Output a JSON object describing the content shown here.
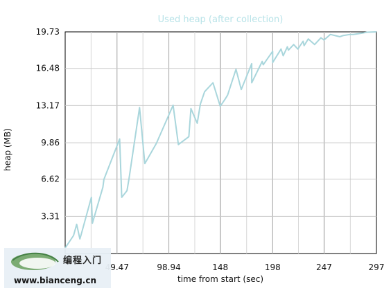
{
  "chart_data": {
    "type": "line",
    "title": "Used heap (after collection)",
    "xlabel": "time from start (sec)",
    "ylabel": "heap (MB)",
    "x_ticks": [
      "49.47",
      "98.94",
      "148",
      "198",
      "247",
      "297"
    ],
    "y_ticks": [
      "3.31",
      "6.62",
      "9.86",
      "13.17",
      "16.48",
      "19.73"
    ],
    "xlim": [
      0,
      297
    ],
    "ylim": [
      0,
      19.73
    ],
    "grid": true,
    "series": [
      {
        "color": "#a9d6dc",
        "x": [
          0,
          8,
          11,
          14,
          15,
          25,
          26,
          36,
          37,
          52,
          54,
          59,
          61,
          71,
          76,
          87,
          103,
          108,
          118,
          120,
          126,
          129,
          133,
          141,
          148,
          153,
          155,
          163,
          168,
          178,
          178,
          188,
          189,
          198,
          198,
          206,
          208,
          212,
          213,
          218,
          222,
          227,
          228,
          232,
          238,
          244,
          247,
          253,
          262,
          265,
          272,
          275,
          282,
          288,
          297
        ],
        "values": [
          0.5,
          1.6,
          2.6,
          1.3,
          1.6,
          5.0,
          2.7,
          5.9,
          6.6,
          10.2,
          5.0,
          5.6,
          6.7,
          13.0,
          8.0,
          9.8,
          13.2,
          9.7,
          10.4,
          12.9,
          11.6,
          13.3,
          14.4,
          15.2,
          13.1,
          13.8,
          14.1,
          16.4,
          14.6,
          16.9,
          15.2,
          17.1,
          16.8,
          18.0,
          17.0,
          18.2,
          17.6,
          18.4,
          18.1,
          18.6,
          18.2,
          18.9,
          18.5,
          19.1,
          18.6,
          19.2,
          19.0,
          19.5,
          19.3,
          19.4,
          19.5,
          19.5,
          19.6,
          19.7,
          19.73
        ]
      }
    ]
  },
  "watermark": {
    "cn_text": "编程入门",
    "url_text": "www.bianceng.cn"
  }
}
